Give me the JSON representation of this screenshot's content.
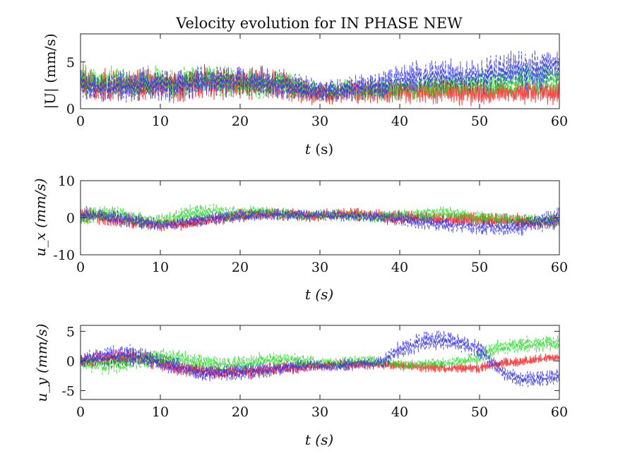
{
  "figure": {
    "title": "Velocity evolution for IN PHASE NEW"
  },
  "chart_data": [
    {
      "type": "line",
      "xlabel_var": "t",
      "xlabel_unit": "(s)",
      "ylabel": "|U| (mm/s)",
      "xlim": [
        0,
        60
      ],
      "ylim": [
        0,
        8
      ],
      "x_ticks": [
        0,
        10,
        20,
        30,
        40,
        50,
        60
      ],
      "x_tick_labels": [
        "0",
        "10",
        "20",
        "30",
        "40",
        "50",
        "60"
      ],
      "y_ticks": [
        0,
        5
      ],
      "y_tick_labels": [
        "0",
        "5"
      ],
      "grid": false,
      "series": [
        {
          "color": "#ff2020",
          "dash": "solid",
          "x": [
            0,
            2,
            4,
            6,
            8,
            10,
            12,
            14,
            16,
            18,
            20,
            22,
            24,
            26,
            28,
            30,
            32,
            34,
            36,
            38,
            40,
            42,
            44,
            46,
            48,
            50,
            52,
            54,
            56,
            58,
            60
          ],
          "y": [
            3.0,
            2.3,
            2.6,
            2.5,
            2.7,
            2.4,
            2.4,
            2.7,
            2.8,
            2.6,
            2.6,
            2.8,
            2.7,
            2.5,
            1.8,
            1.6,
            1.6,
            1.9,
            1.8,
            1.8,
            1.8,
            1.9,
            1.9,
            1.9,
            1.8,
            1.8,
            1.8,
            1.8,
            1.8,
            1.8,
            1.7
          ],
          "amp": [
            2.6,
            2.0,
            2.0,
            2.0,
            2.1,
            2.0,
            2.0,
            2.0,
            2.0,
            2.0,
            2.0,
            2.0,
            2.0,
            2.0,
            1.5,
            1.4,
            1.4,
            1.5,
            1.5,
            1.5,
            1.5,
            1.5,
            1.6,
            1.6,
            1.6,
            1.6,
            1.6,
            1.5,
            1.5,
            1.5,
            1.5
          ]
        },
        {
          "color": "#22dd22",
          "dash": "dashed",
          "x": [
            0,
            2,
            4,
            6,
            8,
            10,
            12,
            14,
            16,
            18,
            20,
            22,
            24,
            26,
            28,
            30,
            32,
            34,
            36,
            38,
            40,
            42,
            44,
            46,
            48,
            50,
            52,
            54,
            56,
            58,
            60
          ],
          "y": [
            3.2,
            2.5,
            2.8,
            2.6,
            2.8,
            2.8,
            2.8,
            2.9,
            3.0,
            2.8,
            2.7,
            2.7,
            2.6,
            2.5,
            2.0,
            1.8,
            1.8,
            2.0,
            2.0,
            2.1,
            2.1,
            2.2,
            2.4,
            2.6,
            2.6,
            2.6,
            2.8,
            3.0,
            3.0,
            3.2,
            3.2
          ],
          "amp": [
            2.5,
            1.8,
            2.0,
            2.0,
            2.0,
            2.0,
            2.0,
            2.0,
            2.0,
            1.9,
            1.9,
            1.9,
            1.8,
            1.8,
            1.4,
            1.3,
            1.3,
            1.4,
            1.4,
            1.5,
            1.5,
            1.6,
            1.6,
            1.6,
            1.7,
            1.8,
            1.8,
            1.9,
            1.9,
            1.9,
            1.9
          ]
        },
        {
          "color": "#3030ee",
          "dash": "dashed",
          "x": [
            0,
            2,
            4,
            6,
            8,
            10,
            12,
            14,
            16,
            18,
            20,
            22,
            24,
            26,
            28,
            30,
            32,
            34,
            36,
            38,
            40,
            42,
            44,
            46,
            48,
            50,
            52,
            54,
            56,
            58,
            60
          ],
          "y": [
            2.6,
            2.2,
            2.4,
            2.4,
            2.6,
            2.6,
            2.6,
            2.8,
            3.0,
            2.9,
            2.8,
            2.8,
            2.7,
            2.6,
            2.2,
            1.9,
            1.9,
            2.2,
            2.4,
            2.6,
            3.0,
            3.3,
            3.4,
            3.5,
            3.4,
            3.5,
            3.8,
            4.2,
            4.0,
            4.2,
            4.4
          ],
          "amp": [
            1.8,
            1.6,
            1.8,
            1.9,
            2.0,
            2.0,
            2.0,
            2.0,
            2.0,
            1.9,
            1.9,
            1.9,
            1.8,
            1.8,
            1.5,
            1.4,
            1.4,
            1.6,
            1.7,
            1.8,
            2.0,
            2.1,
            2.1,
            2.1,
            2.1,
            2.2,
            2.3,
            2.4,
            2.4,
            2.4,
            2.4
          ]
        }
      ]
    },
    {
      "type": "line",
      "xlabel_var": "t",
      "xlabel_unit": "(s)",
      "ylabel": "u_x (mm/s)",
      "xlim": [
        0,
        60
      ],
      "ylim": [
        -10,
        10
      ],
      "x_ticks": [
        0,
        10,
        20,
        30,
        40,
        50,
        60
      ],
      "x_tick_labels": [
        "0",
        "10",
        "20",
        "30",
        "40",
        "50",
        "60"
      ],
      "y_ticks": [
        -10,
        0,
        10
      ],
      "y_tick_labels": [
        "-10",
        "0",
        "10"
      ],
      "grid": false,
      "series": [
        {
          "color": "#ff2020",
          "dash": "solid",
          "x": [
            0,
            2,
            4,
            6,
            8,
            10,
            12,
            14,
            16,
            18,
            20,
            22,
            24,
            26,
            28,
            30,
            32,
            34,
            36,
            38,
            40,
            42,
            44,
            46,
            48,
            50,
            52,
            54,
            56,
            58,
            60
          ],
          "y": [
            1.0,
            0.5,
            -0.3,
            -0.8,
            -1.5,
            -2.0,
            -1.8,
            -1.2,
            -0.6,
            0,
            0.6,
            0.8,
            0.9,
            0.8,
            0.6,
            0.6,
            0.8,
            1.0,
            0.8,
            0.4,
            0.3,
            0,
            -0.3,
            -0.3,
            -0.2,
            -0.4,
            -0.6,
            -0.8,
            -1.0,
            -1.2,
            -1.0
          ],
          "amp": [
            3.0,
            2.5,
            2.5,
            2.4,
            2.2,
            2.0,
            2.0,
            2.0,
            2.0,
            2.0,
            2.0,
            2.0,
            2.0,
            2.0,
            2.0,
            2.0,
            2.2,
            2.2,
            2.2,
            2.2,
            2.2,
            2.2,
            2.2,
            2.2,
            2.2,
            2.2,
            2.2,
            2.4,
            2.4,
            2.4,
            2.4
          ]
        },
        {
          "color": "#22dd22",
          "dash": "dashed",
          "x": [
            0,
            2,
            4,
            6,
            8,
            10,
            12,
            14,
            16,
            18,
            20,
            22,
            24,
            26,
            28,
            30,
            32,
            34,
            36,
            38,
            40,
            42,
            44,
            46,
            48,
            50,
            52,
            54,
            56,
            58,
            60
          ],
          "y": [
            0,
            0.8,
            1.2,
            0.2,
            -1.0,
            -1.0,
            0.2,
            1.4,
            1.6,
            1.2,
            1.2,
            1.6,
            1.4,
            1.0,
            0.6,
            0.6,
            0.7,
            0.6,
            0.4,
            0.2,
            0.4,
            0.8,
            1.2,
            1.2,
            0.6,
            0.2,
            -0.2,
            -0.4,
            -0.8,
            -1.0,
            -0.8
          ],
          "amp": [
            2.8,
            2.5,
            2.6,
            2.6,
            2.5,
            2.5,
            2.6,
            2.6,
            2.6,
            2.4,
            2.4,
            2.2,
            2.0,
            2.0,
            1.8,
            1.8,
            1.8,
            1.8,
            1.8,
            1.8,
            2.0,
            2.2,
            2.2,
            2.2,
            2.2,
            2.2,
            2.2,
            2.2,
            2.2,
            2.2,
            2.2
          ]
        },
        {
          "color": "#3030ee",
          "dash": "dashed",
          "x": [
            0,
            2,
            4,
            6,
            8,
            10,
            12,
            14,
            16,
            18,
            20,
            22,
            24,
            26,
            28,
            30,
            32,
            34,
            36,
            38,
            40,
            42,
            44,
            46,
            48,
            50,
            52,
            54,
            56,
            58,
            60
          ],
          "y": [
            0.8,
            0.6,
            -0.2,
            -0.6,
            -1.2,
            -1.8,
            -1.6,
            -1.0,
            -0.4,
            0.2,
            0.6,
            0.6,
            0.8,
            0.8,
            0.6,
            0.6,
            0.6,
            0.6,
            0.4,
            0,
            -0.4,
            -1.0,
            -1.6,
            -1.8,
            -2.0,
            -2.6,
            -2.8,
            -2.4,
            -1.8,
            -1.0,
            -0.2
          ],
          "amp": [
            2.8,
            2.4,
            2.4,
            2.4,
            2.2,
            2.0,
            2.0,
            2.0,
            2.0,
            2.0,
            2.0,
            2.0,
            2.0,
            2.0,
            2.0,
            1.8,
            1.8,
            1.8,
            1.8,
            2.0,
            2.2,
            2.4,
            2.4,
            2.4,
            2.4,
            2.4,
            2.6,
            2.8,
            3.0,
            3.2,
            3.4
          ]
        }
      ]
    },
    {
      "type": "line",
      "xlabel_var": "t",
      "xlabel_unit": "(s)",
      "ylabel": "u_y (mm/s)",
      "xlim": [
        0,
        60
      ],
      "ylim": [
        -6.5,
        6
      ],
      "x_ticks": [
        0,
        10,
        20,
        30,
        40,
        50,
        60
      ],
      "x_tick_labels": [
        "0",
        "10",
        "20",
        "30",
        "40",
        "50",
        "60"
      ],
      "y_ticks": [
        -5,
        0,
        5
      ],
      "y_tick_labels": [
        "-5",
        "0",
        "5"
      ],
      "grid": false,
      "series": [
        {
          "color": "#ff2020",
          "dash": "solid",
          "x": [
            0,
            2,
            4,
            6,
            8,
            10,
            12,
            14,
            16,
            18,
            20,
            22,
            24,
            26,
            28,
            30,
            32,
            34,
            36,
            38,
            40,
            42,
            44,
            46,
            48,
            50,
            52,
            54,
            56,
            58,
            60
          ],
          "y": [
            0,
            0.4,
            0.6,
            0.6,
            0.4,
            -0.4,
            -1.0,
            -1.4,
            -1.8,
            -1.8,
            -1.8,
            -1.6,
            -1.4,
            -1.2,
            -1.0,
            -0.8,
            -0.8,
            -0.6,
            -0.6,
            -0.6,
            -0.8,
            -1.0,
            -1.0,
            -1.2,
            -1.2,
            -1.2,
            -0.6,
            -0.2,
            0,
            0.4,
            0.6
          ],
          "amp": [
            1.6,
            1.6,
            1.6,
            1.6,
            1.6,
            1.5,
            1.5,
            1.5,
            1.5,
            1.4,
            1.4,
            1.4,
            1.3,
            1.2,
            1.2,
            1.0,
            1.0,
            1.0,
            1.0,
            1.0,
            1.0,
            1.0,
            1.0,
            1.0,
            1.0,
            1.0,
            1.0,
            1.0,
            1.0,
            1.0,
            1.0
          ]
        },
        {
          "color": "#22dd22",
          "dash": "dashed",
          "x": [
            0,
            2,
            4,
            6,
            8,
            10,
            12,
            14,
            16,
            18,
            20,
            22,
            24,
            26,
            28,
            30,
            32,
            34,
            36,
            38,
            40,
            42,
            44,
            46,
            48,
            50,
            52,
            54,
            56,
            58,
            60
          ],
          "y": [
            0,
            -0.6,
            -0.6,
            -0.2,
            0.2,
            0.6,
            0.4,
            0,
            -0.4,
            -0.6,
            -0.4,
            0,
            0.2,
            0.2,
            0,
            -0.4,
            -0.4,
            -0.2,
            0,
            0,
            -0.6,
            -0.6,
            -0.4,
            -0.4,
            0,
            0.8,
            2.0,
            2.6,
            2.8,
            3.0,
            2.8
          ],
          "amp": [
            1.8,
            2.0,
            2.0,
            1.8,
            1.8,
            1.8,
            1.8,
            1.6,
            1.6,
            1.6,
            1.6,
            1.6,
            1.6,
            1.4,
            1.4,
            1.2,
            1.2,
            1.2,
            1.2,
            1.2,
            1.0,
            1.0,
            1.0,
            1.0,
            1.2,
            1.4,
            1.6,
            1.6,
            1.6,
            1.6,
            1.6
          ]
        },
        {
          "color": "#3030ee",
          "dash": "dashed",
          "x": [
            0,
            2,
            4,
            6,
            8,
            10,
            12,
            14,
            16,
            18,
            20,
            22,
            24,
            26,
            28,
            30,
            32,
            34,
            36,
            38,
            40,
            42,
            44,
            46,
            48,
            50,
            52,
            54,
            56,
            58,
            60
          ],
          "y": [
            0,
            0.6,
            0.8,
            1.0,
            0.6,
            -0.4,
            -1.0,
            -1.6,
            -2.0,
            -2.0,
            -2.0,
            -1.6,
            -1.4,
            -1.0,
            -0.8,
            -0.8,
            -0.8,
            -0.6,
            -0.4,
            -0.2,
            2.0,
            3.0,
            3.4,
            3.4,
            3.0,
            2.0,
            -1.0,
            -2.8,
            -3.0,
            -3.0,
            -2.6
          ],
          "amp": [
            1.8,
            2.0,
            2.2,
            2.2,
            2.0,
            1.8,
            1.8,
            1.8,
            1.8,
            1.8,
            1.6,
            1.6,
            1.4,
            1.4,
            1.4,
            1.2,
            1.2,
            1.2,
            1.2,
            1.4,
            1.8,
            2.0,
            2.0,
            2.0,
            1.8,
            1.8,
            1.6,
            1.6,
            1.6,
            1.6,
            1.6
          ]
        }
      ]
    }
  ]
}
